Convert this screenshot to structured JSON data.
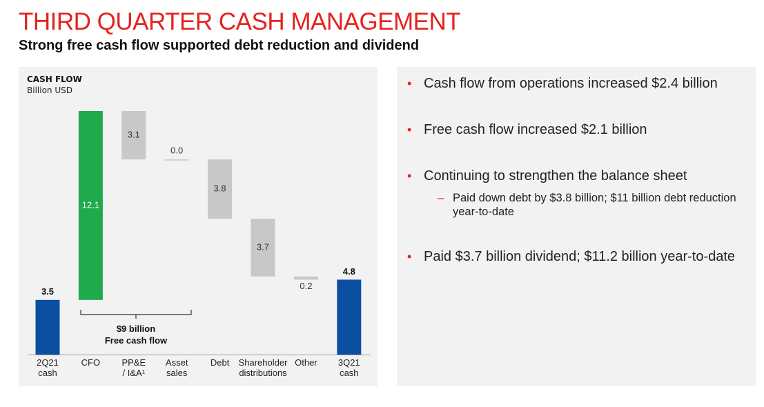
{
  "title": "THIRD QUARTER CASH MANAGEMENT",
  "subtitle": "Strong free cash flow supported debt reduction and dividend",
  "chart_data": {
    "type": "waterfall",
    "title": "CASH FLOW",
    "subtitle": "Billion USD",
    "categories": [
      "2Q21\ncash",
      "CFO",
      "PP&E\n/ I&A¹",
      "Asset\nsales",
      "Debt",
      "Shareholder\ndistributions",
      "Other",
      "3Q21\ncash"
    ],
    "values": [
      3.5,
      12.1,
      -3.1,
      0.0,
      -3.8,
      -3.7,
      -0.2,
      4.8
    ],
    "value_labels": [
      "3.5",
      "12.1",
      "3.1",
      "0.0",
      "3.8",
      "3.7",
      "0.2",
      "4.8"
    ],
    "colors": [
      "#0b4ea2",
      "#1faa4b",
      "#c8c8c8",
      "#c8c8c8",
      "#c8c8c8",
      "#c8c8c8",
      "#c8c8c8",
      "#0b4ea2"
    ],
    "annotation": [
      "$9 billion",
      "Free cash flow"
    ]
  },
  "bullets": [
    {
      "text": "Cash flow from operations increased $2.4 billion"
    },
    {
      "text": "Free cash flow increased $2.1 billion"
    },
    {
      "text": "Continuing to strengthen the balance sheet",
      "sub": [
        "Paid down debt by $3.8 billion; $11 billion debt reduction year-to-date"
      ]
    },
    {
      "text": "Paid $3.7 billion dividend; $11.2 billion year-to-date"
    }
  ]
}
